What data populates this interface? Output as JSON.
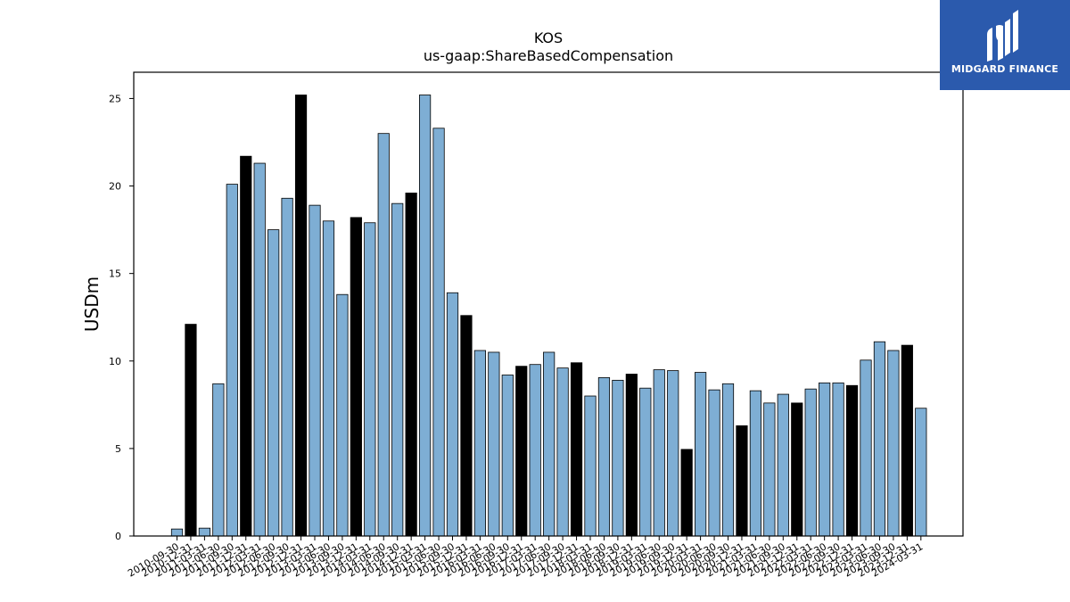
{
  "chart_data": {
    "type": "bar",
    "title": "KOS",
    "subtitle": "us-gaap:ShareBasedCompensation",
    "xlabel": "",
    "ylabel": "USDm",
    "ylim": [
      0,
      26.5
    ],
    "yticks": [
      0,
      5,
      10,
      15,
      20,
      25
    ],
    "grid": false,
    "colors": {
      "quarter": "#7eaed4",
      "annual": "#000000",
      "edge": "#000000"
    },
    "categories": [
      "2010-09-30",
      "2010-12-31",
      "2011-03-31",
      "2011-06-30",
      "2011-09-30",
      "2011-12-31",
      "2012-03-31",
      "2012-06-30",
      "2012-09-30",
      "2012-12-31",
      "2013-03-31",
      "2013-06-30",
      "2013-09-30",
      "2013-12-31",
      "2014-03-31",
      "2014-06-30",
      "2014-09-30",
      "2014-12-31",
      "2015-03-31",
      "2015-06-30",
      "2015-09-30",
      "2015-12-31",
      "2016-03-31",
      "2016-06-30",
      "2016-09-30",
      "2016-12-31",
      "2017-03-31",
      "2017-06-30",
      "2017-09-30",
      "2017-12-31",
      "2018-03-31",
      "2018-06-30",
      "2018-09-30",
      "2018-12-31",
      "2019-03-31",
      "2019-06-30",
      "2019-09-30",
      "2019-12-31",
      "2020-03-31",
      "2020-06-30",
      "2020-09-30",
      "2020-12-31",
      "2021-03-31",
      "2021-06-30",
      "2021-09-30",
      "2021-12-31",
      "2022-03-31",
      "2022-06-30",
      "2022-09-30",
      "2022-12-31",
      "2023-03-31",
      "2023-06-30",
      "2023-09-30",
      "2023-12-31",
      "2024-03-31"
    ],
    "series": [
      {
        "values": [
          0.4,
          12.1,
          0.45,
          8.7,
          20.1,
          21.7,
          21.3,
          17.5,
          19.3,
          25.2,
          18.9,
          18.0,
          13.8,
          18.2,
          17.9,
          23.0,
          19.0,
          19.6,
          25.2,
          23.3,
          13.9,
          12.6,
          10.6,
          10.5,
          9.2,
          9.7,
          9.8,
          10.5,
          9.6,
          9.9,
          8.0,
          9.05,
          8.9,
          9.25,
          8.45,
          9.5,
          9.45,
          4.95,
          9.35,
          8.35,
          8.7,
          6.3,
          8.3,
          7.6,
          8.1,
          7.6,
          8.4,
          8.75,
          8.75,
          8.6,
          10.05,
          11.1,
          10.6,
          10.9,
          7.3
        ],
        "annual": [
          false,
          true,
          false,
          false,
          false,
          true,
          false,
          false,
          false,
          true,
          false,
          false,
          false,
          true,
          false,
          false,
          false,
          true,
          false,
          false,
          false,
          true,
          false,
          false,
          false,
          true,
          false,
          false,
          false,
          true,
          false,
          false,
          false,
          true,
          false,
          false,
          false,
          true,
          false,
          false,
          false,
          true,
          false,
          false,
          false,
          true,
          false,
          false,
          false,
          true,
          false,
          false,
          false,
          true,
          false
        ]
      }
    ]
  },
  "logo": {
    "text": "MIDGARD FINANCE"
  }
}
